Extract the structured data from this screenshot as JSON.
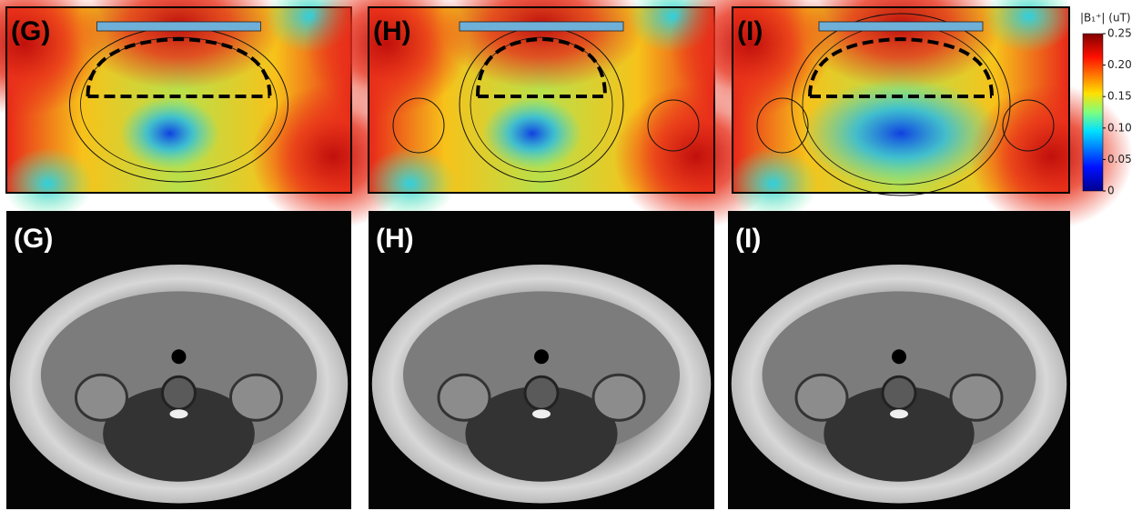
{
  "figure": {
    "top_panels": [
      {
        "label": "(G)"
      },
      {
        "label": "(H)"
      },
      {
        "label": "(I)"
      }
    ],
    "bottom_panels": [
      {
        "label": "(G)"
      },
      {
        "label": "(H)"
      },
      {
        "label": "(I)"
      }
    ],
    "colorbar": {
      "label": "|B₁⁺| (uT)",
      "lim": [
        0,
        0.25
      ],
      "ticks": [
        0,
        0.05,
        {
          "value": 0.1,
          "label": "0.10"
        },
        0.15,
        {
          "value": 0.2,
          "label": "0.20"
        },
        0.25
      ]
    }
  }
}
